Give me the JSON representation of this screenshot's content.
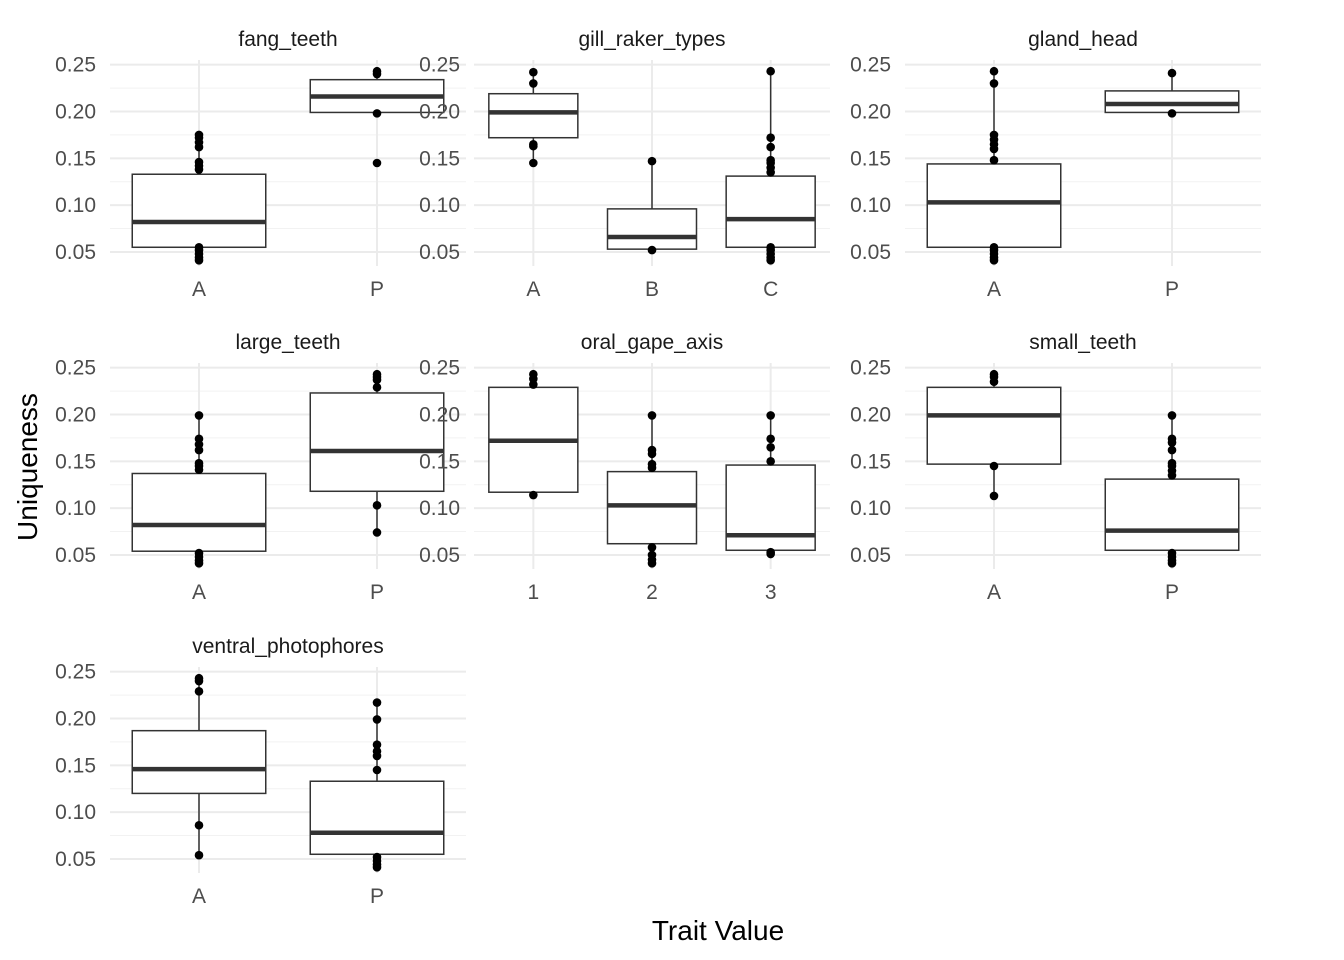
{
  "chart_data": {
    "type": "boxplot",
    "xlabel": "Trait Value",
    "ylabel": "Uniqueness",
    "ylim": [
      0.035,
      0.255
    ],
    "yticks": [
      0.05,
      0.1,
      0.15,
      0.2,
      0.25
    ],
    "ytick_labels": [
      "0.05",
      "0.10",
      "0.15",
      "0.20",
      "0.25"
    ],
    "grid": true,
    "layout": "facet grid, 3 columns",
    "facets": [
      {
        "title": "fang_teeth",
        "groups": [
          {
            "label": "A",
            "lower_whisker": 0.041,
            "q1": 0.055,
            "median": 0.082,
            "q3": 0.133,
            "upper_whisker": 0.175,
            "points": [
              0.041,
              0.044,
              0.048,
              0.052,
              0.055,
              0.138,
              0.142,
              0.146,
              0.162,
              0.167,
              0.172,
              0.175
            ]
          },
          {
            "label": "P",
            "lower_whisker": 0.198,
            "q1": 0.199,
            "median": 0.216,
            "q3": 0.234,
            "upper_whisker": 0.243,
            "points": [
              0.145,
              0.198,
              0.24,
              0.243
            ]
          }
        ]
      },
      {
        "title": "gill_raker_types",
        "groups": [
          {
            "label": "A",
            "lower_whisker": 0.145,
            "q1": 0.172,
            "median": 0.199,
            "q3": 0.219,
            "upper_whisker": 0.242,
            "points": [
              0.145,
              0.163,
              0.165,
              0.23,
              0.242
            ]
          },
          {
            "label": "B",
            "lower_whisker": 0.052,
            "q1": 0.053,
            "median": 0.066,
            "q3": 0.096,
            "upper_whisker": 0.147,
            "points": [
              0.052,
              0.147
            ]
          },
          {
            "label": "C",
            "lower_whisker": 0.041,
            "q1": 0.055,
            "median": 0.085,
            "q3": 0.131,
            "upper_whisker": 0.243,
            "points": [
              0.041,
              0.044,
              0.048,
              0.052,
              0.055,
              0.135,
              0.14,
              0.145,
              0.148,
              0.162,
              0.172,
              0.243
            ]
          }
        ]
      },
      {
        "title": "gland_head",
        "groups": [
          {
            "label": "A",
            "lower_whisker": 0.041,
            "q1": 0.055,
            "median": 0.103,
            "q3": 0.144,
            "upper_whisker": 0.243,
            "points": [
              0.041,
              0.044,
              0.048,
              0.052,
              0.055,
              0.148,
              0.16,
              0.165,
              0.17,
              0.175,
              0.23,
              0.243
            ]
          },
          {
            "label": "P",
            "lower_whisker": 0.198,
            "q1": 0.199,
            "median": 0.208,
            "q3": 0.222,
            "upper_whisker": 0.241,
            "points": [
              0.198,
              0.241
            ]
          }
        ]
      },
      {
        "title": "large_teeth",
        "groups": [
          {
            "label": "A",
            "lower_whisker": 0.041,
            "q1": 0.054,
            "median": 0.082,
            "q3": 0.137,
            "upper_whisker": 0.199,
            "points": [
              0.041,
              0.044,
              0.048,
              0.052,
              0.141,
              0.145,
              0.148,
              0.162,
              0.168,
              0.174,
              0.199
            ]
          },
          {
            "label": "P",
            "lower_whisker": 0.074,
            "q1": 0.118,
            "median": 0.161,
            "q3": 0.223,
            "upper_whisker": 0.243,
            "points": [
              0.074,
              0.103,
              0.229,
              0.237,
              0.24,
              0.243
            ]
          }
        ]
      },
      {
        "title": "oral_gape_axis",
        "groups": [
          {
            "label": "1",
            "lower_whisker": 0.114,
            "q1": 0.117,
            "median": 0.172,
            "q3": 0.229,
            "upper_whisker": 0.243,
            "points": [
              0.114,
              0.232,
              0.238,
              0.243
            ]
          },
          {
            "label": "2",
            "lower_whisker": 0.041,
            "q1": 0.062,
            "median": 0.103,
            "q3": 0.139,
            "upper_whisker": 0.199,
            "points": [
              0.041,
              0.045,
              0.05,
              0.058,
              0.143,
              0.147,
              0.158,
              0.162,
              0.199
            ]
          },
          {
            "label": "3",
            "lower_whisker": 0.051,
            "q1": 0.055,
            "median": 0.071,
            "q3": 0.146,
            "upper_whisker": 0.199,
            "points": [
              0.051,
              0.053,
              0.15,
              0.165,
              0.174,
              0.199
            ]
          }
        ]
      },
      {
        "title": "small_teeth",
        "groups": [
          {
            "label": "A",
            "lower_whisker": 0.113,
            "q1": 0.147,
            "median": 0.199,
            "q3": 0.229,
            "upper_whisker": 0.243,
            "points": [
              0.113,
              0.145,
              0.235,
              0.24,
              0.243
            ]
          },
          {
            "label": "P",
            "lower_whisker": 0.041,
            "q1": 0.055,
            "median": 0.076,
            "q3": 0.131,
            "upper_whisker": 0.199,
            "points": [
              0.041,
              0.044,
              0.048,
              0.052,
              0.135,
              0.14,
              0.145,
              0.148,
              0.162,
              0.17,
              0.174,
              0.199
            ]
          }
        ]
      },
      {
        "title": "ventral_photophores",
        "groups": [
          {
            "label": "A",
            "lower_whisker": 0.054,
            "q1": 0.12,
            "median": 0.146,
            "q3": 0.187,
            "upper_whisker": 0.243,
            "points": [
              0.054,
              0.086,
              0.229,
              0.24,
              0.243
            ]
          },
          {
            "label": "P",
            "lower_whisker": 0.041,
            "q1": 0.055,
            "median": 0.078,
            "q3": 0.133,
            "upper_whisker": 0.217,
            "points": [
              0.041,
              0.044,
              0.048,
              0.052,
              0.145,
              0.16,
              0.165,
              0.172,
              0.199,
              0.217
            ]
          }
        ]
      }
    ]
  }
}
